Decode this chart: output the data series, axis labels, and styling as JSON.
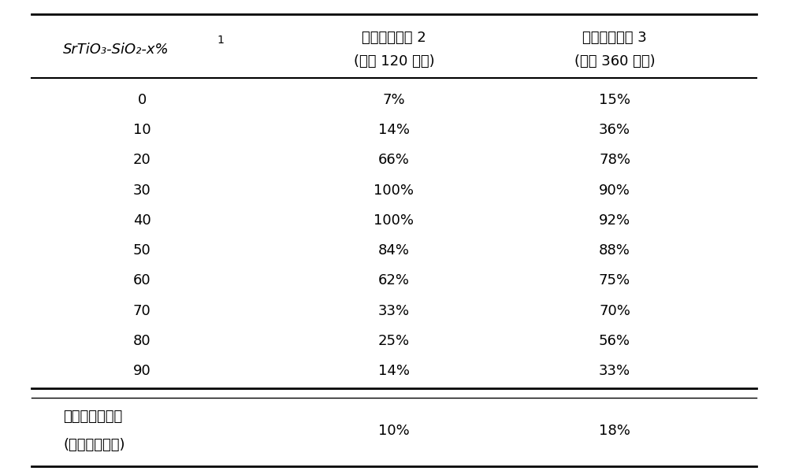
{
  "col1_header_line1": "SrTiO₃-SiO₂-x%",
  "col1_header_sup": "1",
  "col2_header_line1": "乙醒去除能力",
  "col2_header_sup": "2",
  "col2_header_line2": "(光照 120 分钟)",
  "col3_header_line1": "乙醒矿化能力",
  "col3_header_sup": "3",
  "col3_header_line2": "(光照 360 分钟)",
  "data_rows": [
    [
      "0",
      "7%",
      "15%"
    ],
    [
      "10",
      "14%",
      "36%"
    ],
    [
      "20",
      "66%",
      "78%"
    ],
    [
      "30",
      "100%",
      "90%"
    ],
    [
      "40",
      "100%",
      "92%"
    ],
    [
      "50",
      "84%",
      "88%"
    ],
    [
      "60",
      "62%",
      "75%"
    ],
    [
      "70",
      "33%",
      "70%"
    ],
    [
      "80",
      "25%",
      "56%"
    ],
    [
      "90",
      "14%",
      "33%"
    ]
  ],
  "footer_col1_line1": "商用纳米鑂酸镀",
  "footer_col1_line2": "(日本和光制药)",
  "footer_col2": "10%",
  "footer_col3": "18%",
  "bg_color": "#ffffff",
  "text_color": "#000000",
  "line_color": "#000000",
  "font_size": 13,
  "header_font_size": 13
}
